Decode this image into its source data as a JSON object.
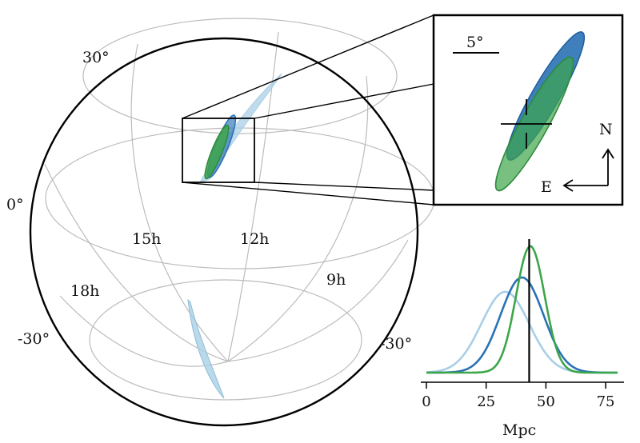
{
  "globe": {
    "dec_labels": {
      "top": "30°",
      "left": "0°",
      "bottom_left": "-30°",
      "bottom_right": "-30°"
    },
    "ra_labels": [
      "18h",
      "15h",
      "12h",
      "9h"
    ]
  },
  "inset": {
    "scale_label": "5°",
    "compass_north": "N",
    "compass_east": "E"
  },
  "colors": {
    "light_blue": "#a9cfe6",
    "blue": "#2a72b5",
    "green": "#3da54a",
    "grid": "#bcbcbc"
  },
  "chart_data": {
    "type": "line",
    "xlabel": "Mpc",
    "xlim": [
      0,
      80
    ],
    "xticks": [
      0,
      25,
      50,
      75
    ],
    "vline_x": 43,
    "series": [
      {
        "color": "#a9cfe6",
        "mean": 33,
        "sd": 10,
        "peak": 0.62
      },
      {
        "color": "#2a72b5",
        "mean": 40,
        "sd": 9,
        "peak": 0.73
      },
      {
        "color": "#3da54a",
        "mean": 43.5,
        "sd": 6,
        "peak": 0.97
      }
    ]
  }
}
